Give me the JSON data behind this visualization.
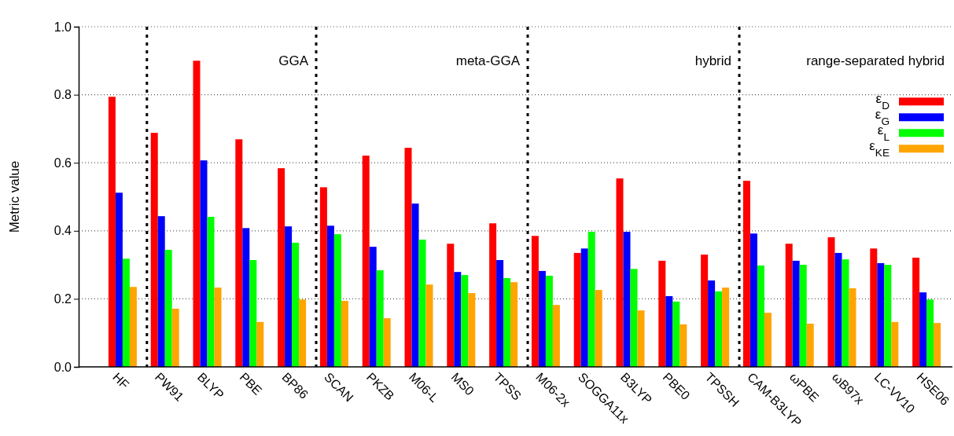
{
  "chart_data": {
    "type": "bar",
    "ylabel": "Metric value",
    "categories": [
      "HF",
      "PW91",
      "BLYP",
      "PBE",
      "BP86",
      "SCAN",
      "PKZB",
      "M06-L",
      "MS0",
      "TPSS",
      "M06-2x",
      "SOGGA11x",
      "B3LYP",
      "PBE0",
      "TPSSH",
      "CAM-B3LYP",
      "ωPBE",
      "ωB97x",
      "LC-VV10",
      "HSE06"
    ],
    "series": [
      {
        "name": "ε$_{D}$",
        "color": "#ff0000",
        "values": [
          0.794,
          0.688,
          0.9,
          0.669,
          0.584,
          0.528,
          0.621,
          0.644,
          0.362,
          0.422,
          0.385,
          0.335,
          0.554,
          0.312,
          0.33,
          0.547,
          0.362,
          0.381,
          0.348,
          0.321
        ]
      },
      {
        "name": "ε$_{G}$",
        "color": "#0000ff",
        "values": [
          0.512,
          0.443,
          0.607,
          0.408,
          0.413,
          0.415,
          0.353,
          0.48,
          0.279,
          0.314,
          0.282,
          0.348,
          0.397,
          0.208,
          0.254,
          0.392,
          0.312,
          0.335,
          0.305,
          0.219
        ]
      },
      {
        "name": "ε$_{L}$",
        "color": "#00ff00",
        "values": [
          0.318,
          0.344,
          0.441,
          0.314,
          0.365,
          0.39,
          0.284,
          0.374,
          0.27,
          0.261,
          0.268,
          0.397,
          0.288,
          0.192,
          0.222,
          0.298,
          0.3,
          0.316,
          0.3,
          0.198
        ]
      },
      {
        "name": "ε$_{KE}$",
        "color": "#ffa500",
        "values": [
          0.235,
          0.171,
          0.233,
          0.132,
          0.198,
          0.194,
          0.143,
          0.242,
          0.217,
          0.249,
          0.182,
          0.226,
          0.166,
          0.125,
          0.233,
          0.159,
          0.127,
          0.231,
          0.132,
          0.129
        ]
      }
    ],
    "ylim": [
      0,
      1
    ],
    "yticks": [
      {
        "value": 0,
        "label": "0.0"
      },
      {
        "value": 0.2,
        "label": "0.2"
      },
      {
        "value": 0.4,
        "label": "0.4"
      },
      {
        "value": 0.6,
        "label": "0.6"
      },
      {
        "value": 0.8,
        "label": "0.8"
      },
      {
        "value": 1,
        "label": "1.0"
      }
    ],
    "grid": "y",
    "legend": "top right",
    "annotations": [
      "GGA",
      "meta-GGA",
      "hybrid",
      "range-separated hybrid"
    ]
  }
}
